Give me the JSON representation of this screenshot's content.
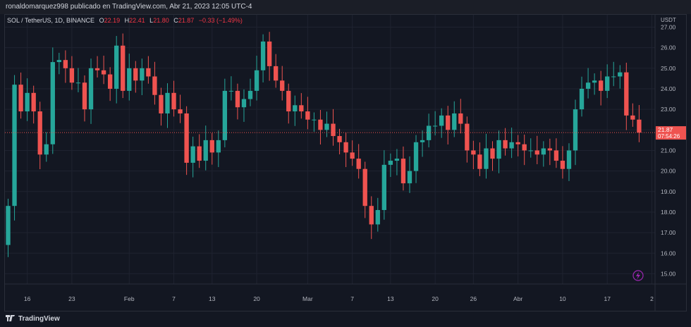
{
  "header": {
    "published_by": "ronaldomarquez998 publicado en TradingView.com, Abr 21, 2023 12:05 UTC-4"
  },
  "legend": {
    "symbol": "SOL / TetherUS, 1D, BINANCE",
    "open_label": "O",
    "open_value": "22.19",
    "high_label": "H",
    "high_value": "22.41",
    "low_label": "L",
    "low_value": "21.80",
    "close_label": "C",
    "close_value": "21.87",
    "change": "−0.33 (−1.49%)"
  },
  "price_axis": {
    "currency": "USDT"
  },
  "price_label": {
    "price": "21.87",
    "countdown": "07:54:26"
  },
  "footer": {
    "brand": "TradingView"
  },
  "colors": {
    "up": "#26a69a",
    "down": "#ef5350",
    "background": "#131722",
    "grid": "#1f2330",
    "text": "#b2b5be",
    "accent": "#9c27b0"
  },
  "chart_data": {
    "type": "candlestick",
    "ylim": [
      14.5,
      27.6
    ],
    "y_ticks": [
      15,
      16,
      17,
      18,
      19,
      20,
      21,
      22,
      23,
      24,
      25,
      26,
      27
    ],
    "x_tick_labels": [
      "16",
      "23",
      "Feb",
      "7",
      "13",
      "20",
      "Mar",
      "7",
      "13",
      "20",
      "26",
      "Abr",
      "10",
      "17",
      "2"
    ],
    "x_tick_index": [
      3,
      10,
      19,
      26,
      32,
      39,
      47,
      54,
      60,
      67,
      73,
      80,
      87,
      94,
      101
    ],
    "last_price": 21.87,
    "open": [
      16.4,
      18.3,
      24.2,
      22.9,
      23.8,
      22.9,
      20.8,
      21.3,
      25.3,
      25.4,
      25.0,
      24.3,
      24.3,
      23.0,
      25.0,
      24.9,
      24.7,
      24.0,
      26.1,
      23.9,
      25.0,
      24.4,
      25.0,
      24.6,
      23.7,
      22.8,
      23.8,
      23.0,
      22.8,
      20.4,
      21.2,
      20.5,
      21.5,
      20.9,
      21.5,
      23.9,
      23.9,
      23.1,
      23.5,
      23.9,
      24.9,
      26.3,
      25.1,
      24.4,
      23.9,
      22.9,
      23.2,
      22.9,
      22.5,
      22.5,
      22.0,
      22.3,
      21.7,
      21.4,
      20.9,
      20.6,
      20.1,
      18.3,
      17.4,
      18.1,
      20.3,
      20.5,
      20.6,
      19.4,
      20.0,
      21.4,
      21.5,
      22.2,
      22.2,
      22.7,
      22.0,
      22.8,
      22.3,
      21.0,
      20.8,
      20.1,
      21.1,
      20.6,
      21.5,
      21.1,
      21.4,
      21.3,
      21.0,
      21.0,
      20.8,
      21.1,
      21.0,
      20.5,
      20.1,
      21.0,
      23.0,
      24.0,
      24.3,
      24.4,
      23.9,
      24.6,
      24.6,
      24.8,
      22.7,
      22.5
    ]
  }
}
